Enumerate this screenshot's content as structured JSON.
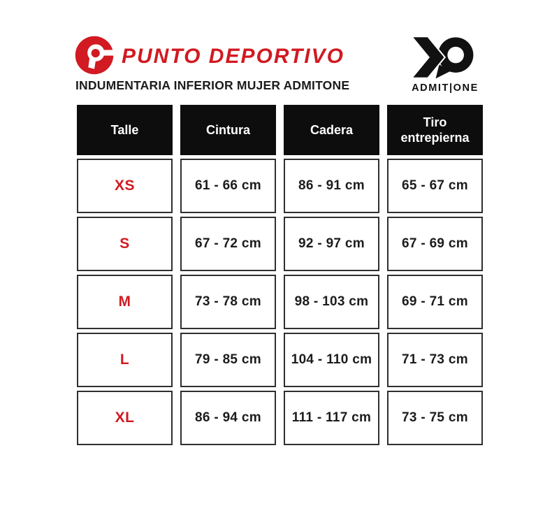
{
  "brand": {
    "name": "PUNTO DEPORTIVO"
  },
  "subtitle": "INDUMENTARIA INFERIOR MUJER ADMITONE",
  "partner": {
    "wordmark": "ADMIT|ONE"
  },
  "table": {
    "headers": [
      "Talle",
      "Cintura",
      "Cadera",
      "Tiro entrepierna"
    ],
    "rows": [
      {
        "talle": "XS",
        "cintura": "61 - 66 cm",
        "cadera": "86 - 91 cm",
        "tiro": "65 - 67 cm"
      },
      {
        "talle": "S",
        "cintura": "67 - 72 cm",
        "cadera": "92 - 97 cm",
        "tiro": "67 - 69 cm"
      },
      {
        "talle": "M",
        "cintura": "73 - 78 cm",
        "cadera": "98 - 103 cm",
        "tiro": "69 - 71 cm"
      },
      {
        "talle": "L",
        "cintura": "79 - 85 cm",
        "cadera": "104 - 110 cm",
        "tiro": "71 - 73 cm"
      },
      {
        "talle": "XL",
        "cintura": "86 - 94 cm",
        "cadera": "111 - 117 cm",
        "tiro": "73 - 75 cm"
      }
    ]
  },
  "colors": {
    "accent_red": "#d11a21",
    "header_bg": "#0d0d0d",
    "cell_border": "#2f2f2f",
    "text_dark": "#1c1c1c",
    "mark_black": "#111111"
  }
}
